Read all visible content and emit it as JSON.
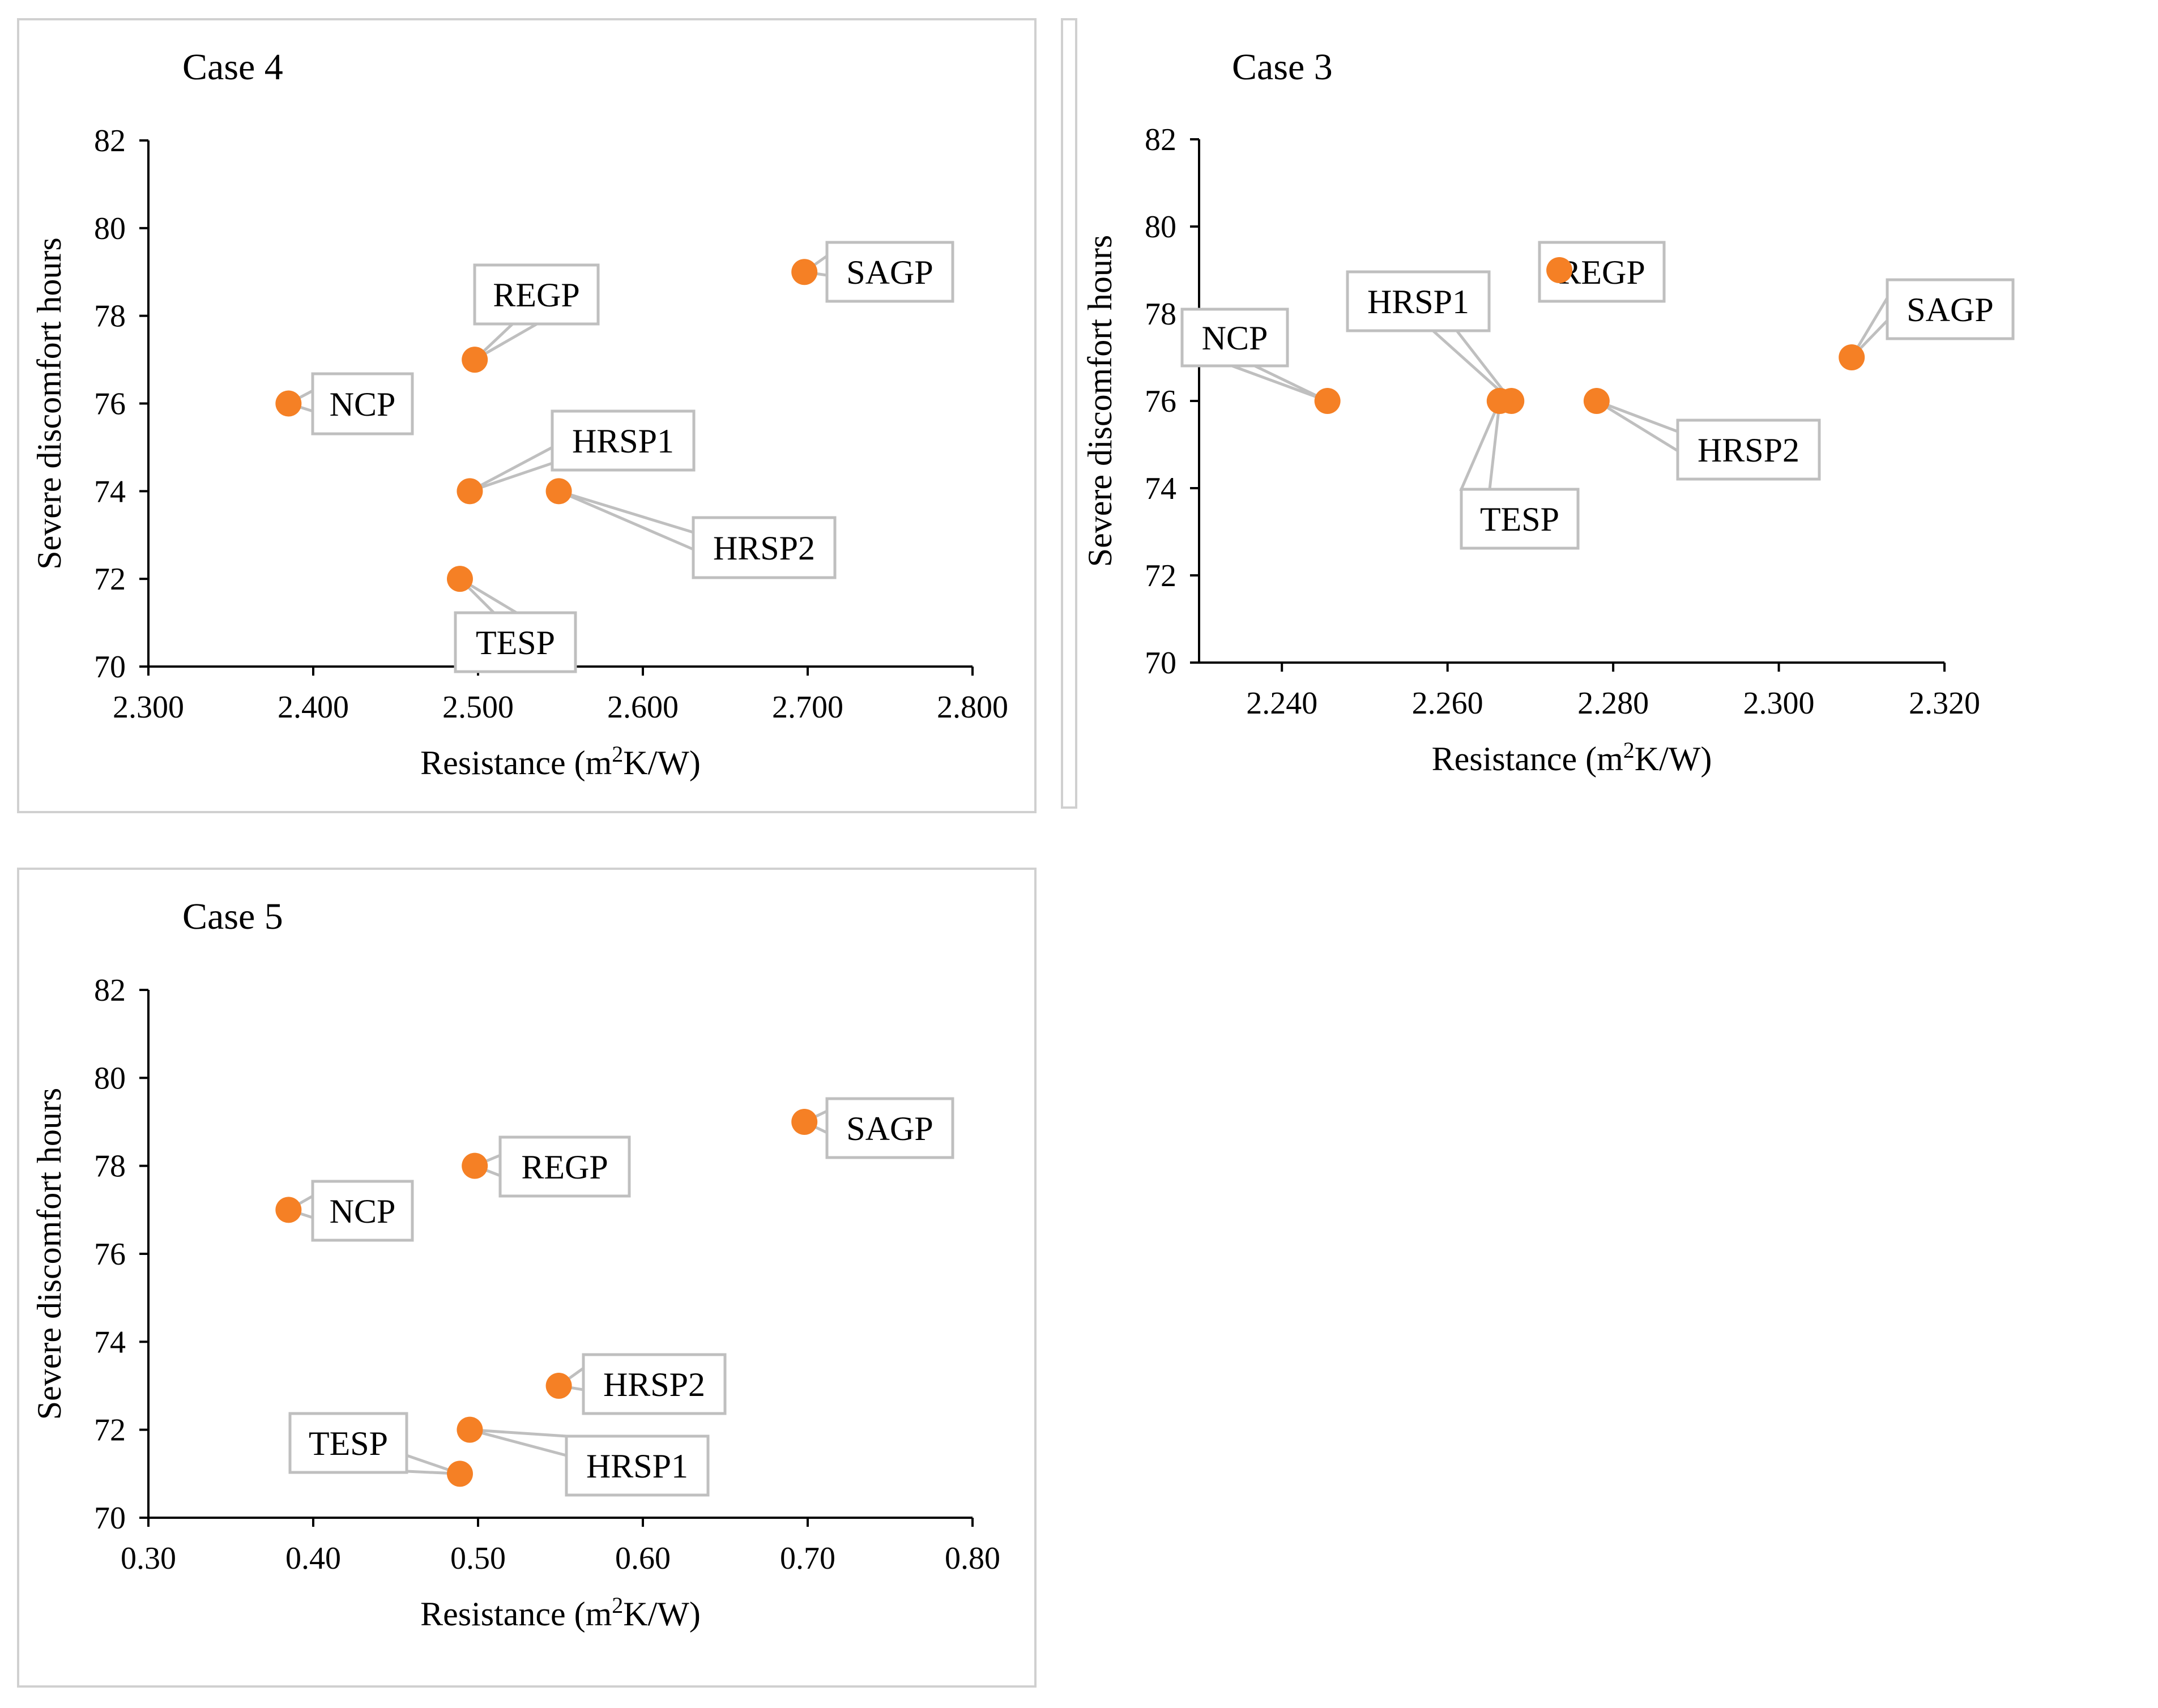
{
  "colors": {
    "marker": "#f58025",
    "axis": "#000000",
    "frame": "#d0d0d0",
    "callout_border": "#bfbfbf"
  },
  "chart_data": [
    {
      "type": "scatter",
      "title": "Case 4",
      "xlabel_prefix": "Resistance (m",
      "xlabel_sup": "2",
      "xlabel_suffix": "K/W)",
      "ylabel": "Severe discomfort hours",
      "xlim": [
        2.3,
        2.8
      ],
      "ylim": [
        70,
        82
      ],
      "xticks": [
        "2.300",
        "2.400",
        "2.500",
        "2.600",
        "2.700",
        "2.800"
      ],
      "yticks": [
        "70",
        "72",
        "74",
        "76",
        "78",
        "80",
        "82"
      ],
      "points": [
        {
          "label": "NCP",
          "x": 2.385,
          "y": 76
        },
        {
          "label": "REGP",
          "x": 2.498,
          "y": 77
        },
        {
          "label": "HRSP1",
          "x": 2.495,
          "y": 74
        },
        {
          "label": "HRSP2",
          "x": 2.549,
          "y": 74
        },
        {
          "label": "TESP",
          "x": 2.489,
          "y": 72
        },
        {
          "label": "SAGP",
          "x": 2.698,
          "y": 79
        }
      ]
    },
    {
      "type": "scatter",
      "title": "Case 3",
      "xlabel_prefix": "Resistance (m",
      "xlabel_sup": "2",
      "xlabel_suffix": "K/W)",
      "ylabel": "Severe discomfort hours",
      "xlim": [
        2.23,
        2.32
      ],
      "ylim": [
        70,
        82
      ],
      "xticks": [
        "2.240",
        "2.260",
        "2.280",
        "2.300",
        "2.320"
      ],
      "yticks": [
        "70",
        "72",
        "74",
        "76",
        "78",
        "80",
        "82"
      ],
      "points": [
        {
          "label": "NCP",
          "x": 2.2455,
          "y": 76
        },
        {
          "label": "HRSP1",
          "x": 2.2677,
          "y": 76
        },
        {
          "label": "TESP",
          "x": 2.2663,
          "y": 76
        },
        {
          "label": "REGP",
          "x": 2.2735,
          "y": 79
        },
        {
          "label": "HRSP2",
          "x": 2.278,
          "y": 76
        },
        {
          "label": "SAGP",
          "x": 2.3088,
          "y": 77
        }
      ]
    },
    {
      "type": "scatter",
      "title": "Case 5",
      "xlabel_prefix": "Resistance (m",
      "xlabel_sup": "2",
      "xlabel_suffix": "K/W)",
      "ylabel": "Severe discomfort hours",
      "xlim": [
        0.3,
        0.8
      ],
      "ylim": [
        70,
        82
      ],
      "xticks": [
        "0.30",
        "0.40",
        "0.50",
        "0.60",
        "0.70",
        "0.80"
      ],
      "yticks": [
        "70",
        "72",
        "74",
        "76",
        "78",
        "80",
        "82"
      ],
      "points": [
        {
          "label": "NCP",
          "x": 0.385,
          "y": 77
        },
        {
          "label": "REGP",
          "x": 0.498,
          "y": 78
        },
        {
          "label": "HRSP2",
          "x": 0.549,
          "y": 73
        },
        {
          "label": "HRSP1",
          "x": 0.495,
          "y": 72
        },
        {
          "label": "TESP",
          "x": 0.489,
          "y": 71
        },
        {
          "label": "SAGP",
          "x": 0.698,
          "y": 79
        }
      ]
    }
  ]
}
